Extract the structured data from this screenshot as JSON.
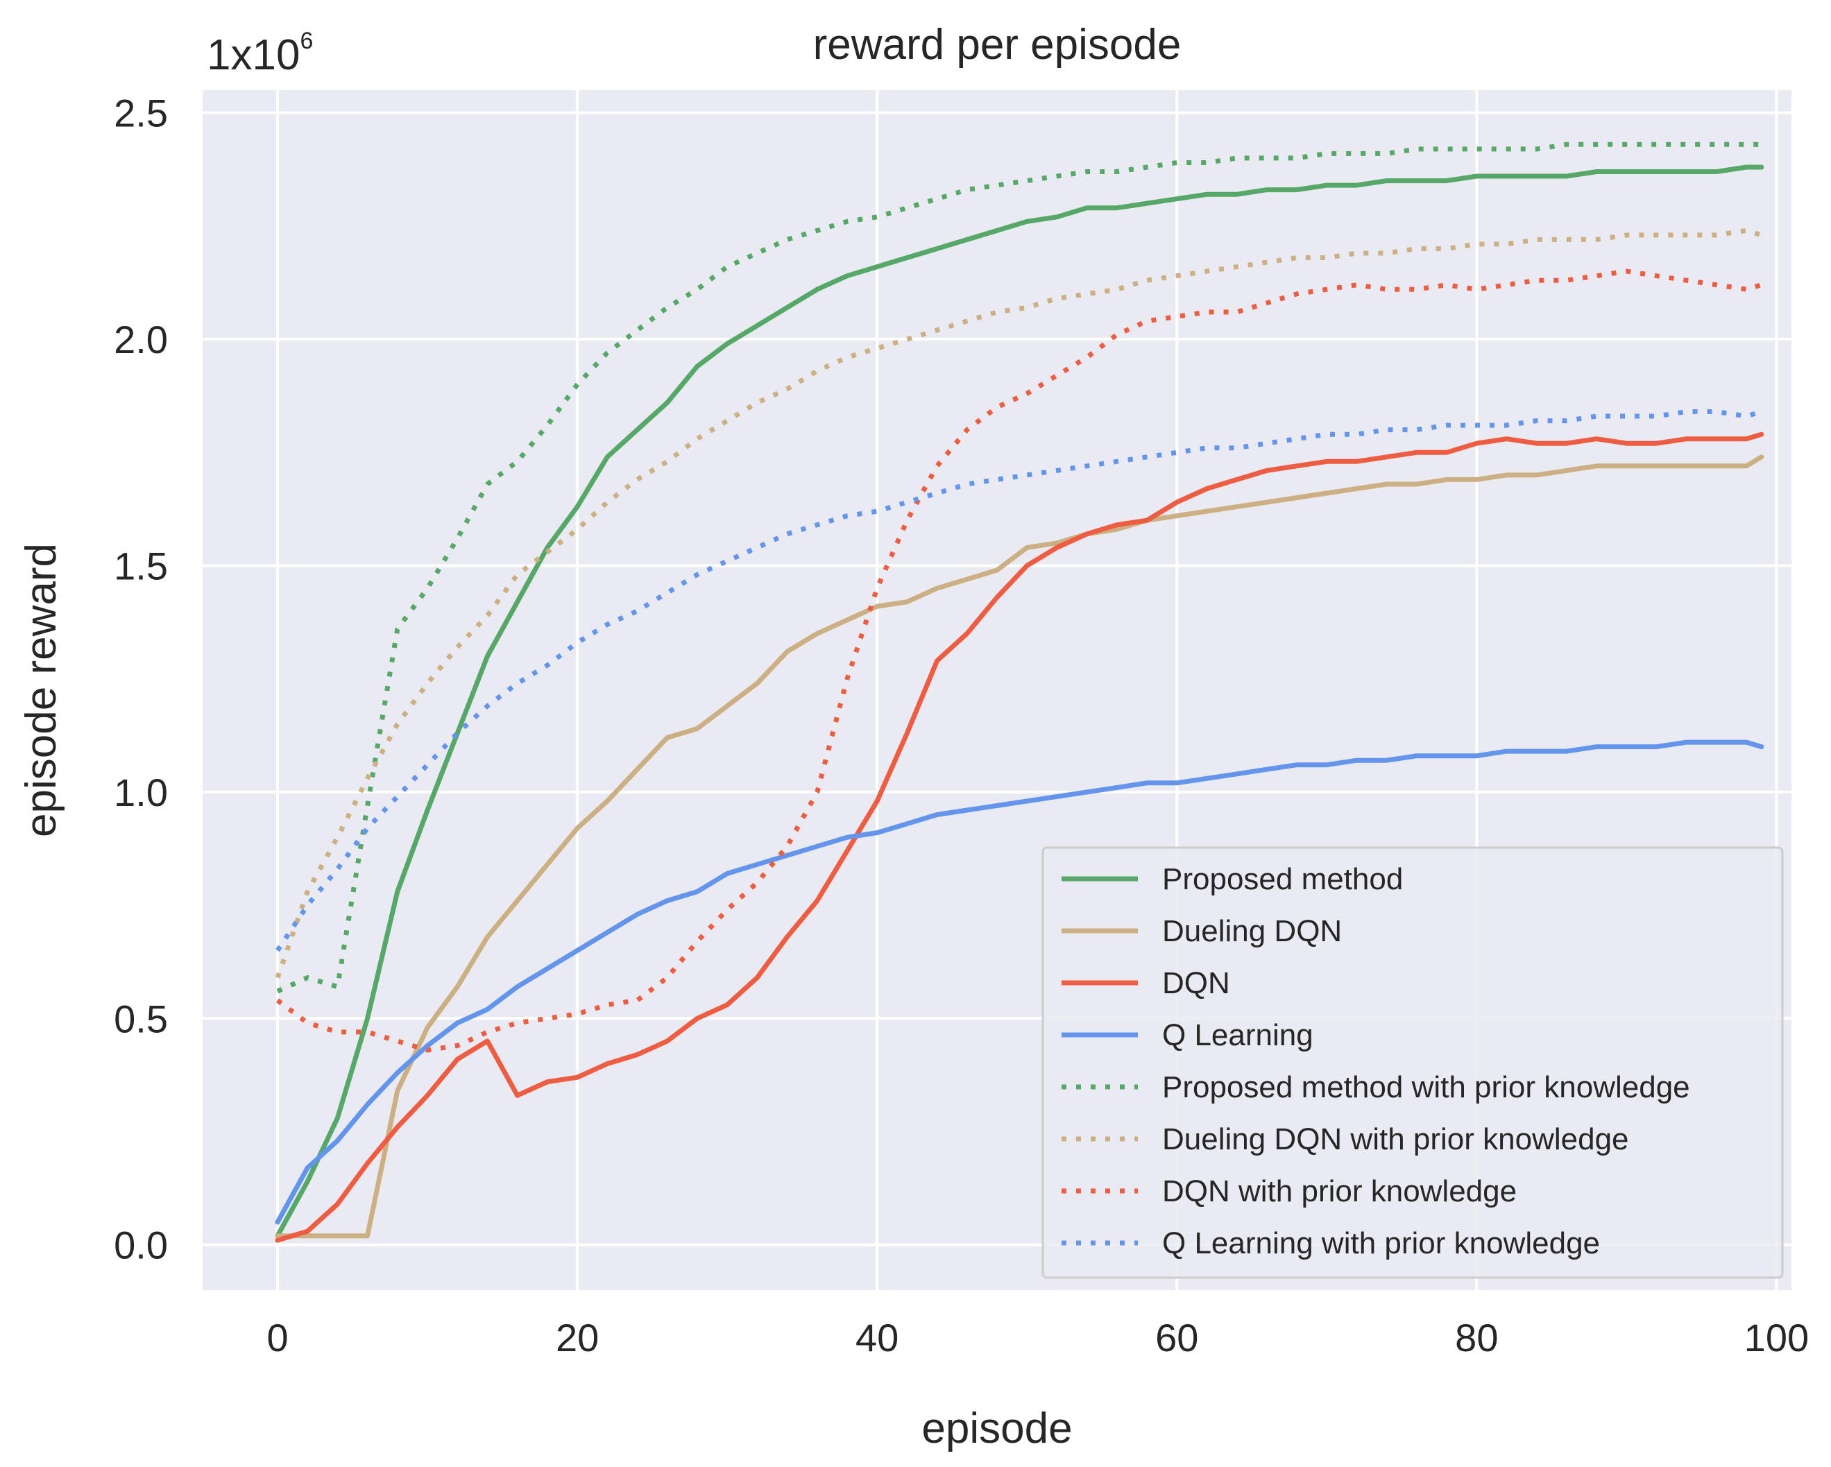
{
  "chart_data": {
    "type": "line",
    "title": "reward per episode",
    "xlabel": "episode",
    "ylabel": "episode reward",
    "scale_base": "1x10",
    "scale_exponent": "6",
    "xlim": [
      -5,
      101
    ],
    "ylim": [
      -0.1,
      2.55
    ],
    "xticks": [
      0,
      20,
      40,
      60,
      80,
      100
    ],
    "yticks": [
      0.0,
      0.5,
      1.0,
      1.5,
      2.0,
      2.5
    ],
    "ytick_labels": [
      "0.0",
      "0.5",
      "1.0",
      "1.5",
      "2.0",
      "2.5"
    ],
    "grid": true,
    "legend_position": "lower-right",
    "x": [
      0,
      2,
      4,
      6,
      8,
      10,
      12,
      14,
      16,
      18,
      20,
      22,
      24,
      26,
      28,
      30,
      32,
      34,
      36,
      38,
      40,
      42,
      44,
      46,
      48,
      50,
      52,
      54,
      56,
      58,
      60,
      62,
      64,
      66,
      68,
      70,
      72,
      74,
      76,
      78,
      80,
      82,
      84,
      86,
      88,
      90,
      92,
      94,
      96,
      98,
      99
    ],
    "series": [
      {
        "name": "Proposed method",
        "color": "#55a868",
        "style": "solid",
        "values": [
          0.02,
          0.14,
          0.28,
          0.5,
          0.78,
          0.96,
          1.13,
          1.3,
          1.42,
          1.54,
          1.63,
          1.74,
          1.8,
          1.86,
          1.94,
          1.99,
          2.03,
          2.07,
          2.11,
          2.14,
          2.16,
          2.18,
          2.2,
          2.22,
          2.24,
          2.26,
          2.27,
          2.29,
          2.29,
          2.3,
          2.31,
          2.32,
          2.32,
          2.33,
          2.33,
          2.34,
          2.34,
          2.35,
          2.35,
          2.35,
          2.36,
          2.36,
          2.36,
          2.36,
          2.37,
          2.37,
          2.37,
          2.37,
          2.37,
          2.38,
          2.38
        ]
      },
      {
        "name": "Dueling DQN",
        "color": "#ccb084",
        "style": "solid",
        "values": [
          0.02,
          0.02,
          0.02,
          0.02,
          0.34,
          0.48,
          0.57,
          0.68,
          0.76,
          0.84,
          0.92,
          0.98,
          1.05,
          1.12,
          1.14,
          1.19,
          1.24,
          1.31,
          1.35,
          1.38,
          1.41,
          1.42,
          1.45,
          1.47,
          1.49,
          1.54,
          1.55,
          1.57,
          1.58,
          1.6,
          1.61,
          1.62,
          1.63,
          1.64,
          1.65,
          1.66,
          1.67,
          1.68,
          1.68,
          1.69,
          1.69,
          1.7,
          1.7,
          1.71,
          1.72,
          1.72,
          1.72,
          1.72,
          1.72,
          1.72,
          1.74
        ]
      },
      {
        "name": "DQN",
        "color": "#ee5c42",
        "style": "solid",
        "values": [
          0.01,
          0.03,
          0.09,
          0.18,
          0.26,
          0.33,
          0.41,
          0.45,
          0.33,
          0.36,
          0.37,
          0.4,
          0.42,
          0.45,
          0.5,
          0.53,
          0.59,
          0.68,
          0.76,
          0.87,
          0.98,
          1.13,
          1.29,
          1.35,
          1.43,
          1.5,
          1.54,
          1.57,
          1.59,
          1.6,
          1.64,
          1.67,
          1.69,
          1.71,
          1.72,
          1.73,
          1.73,
          1.74,
          1.75,
          1.75,
          1.77,
          1.78,
          1.77,
          1.77,
          1.78,
          1.77,
          1.77,
          1.78,
          1.78,
          1.78,
          1.79
        ]
      },
      {
        "name": "Q Learning",
        "color": "#6495ed",
        "style": "solid",
        "values": [
          0.05,
          0.17,
          0.23,
          0.31,
          0.38,
          0.44,
          0.49,
          0.52,
          0.57,
          0.61,
          0.65,
          0.69,
          0.73,
          0.76,
          0.78,
          0.82,
          0.84,
          0.86,
          0.88,
          0.9,
          0.91,
          0.93,
          0.95,
          0.96,
          0.97,
          0.98,
          0.99,
          1.0,
          1.01,
          1.02,
          1.02,
          1.03,
          1.04,
          1.05,
          1.06,
          1.06,
          1.07,
          1.07,
          1.08,
          1.08,
          1.08,
          1.09,
          1.09,
          1.09,
          1.1,
          1.1,
          1.1,
          1.11,
          1.11,
          1.11,
          1.1
        ]
      },
      {
        "name": "Proposed method with prior knowledge",
        "color": "#55a868",
        "style": "dotted",
        "values": [
          0.56,
          0.59,
          0.57,
          0.97,
          1.36,
          1.45,
          1.56,
          1.68,
          1.73,
          1.81,
          1.9,
          1.97,
          2.02,
          2.07,
          2.11,
          2.16,
          2.19,
          2.22,
          2.24,
          2.26,
          2.27,
          2.29,
          2.31,
          2.33,
          2.34,
          2.35,
          2.36,
          2.37,
          2.37,
          2.38,
          2.39,
          2.39,
          2.4,
          2.4,
          2.4,
          2.41,
          2.41,
          2.41,
          2.42,
          2.42,
          2.42,
          2.42,
          2.42,
          2.43,
          2.43,
          2.43,
          2.43,
          2.43,
          2.43,
          2.43,
          2.43
        ]
      },
      {
        "name": "Dueling DQN with prior knowledge",
        "color": "#ccb084",
        "style": "dotted",
        "values": [
          0.59,
          0.78,
          0.9,
          1.03,
          1.15,
          1.24,
          1.32,
          1.39,
          1.48,
          1.53,
          1.58,
          1.64,
          1.69,
          1.73,
          1.78,
          1.82,
          1.86,
          1.89,
          1.93,
          1.96,
          1.98,
          2.0,
          2.02,
          2.04,
          2.06,
          2.07,
          2.09,
          2.1,
          2.11,
          2.13,
          2.14,
          2.15,
          2.16,
          2.17,
          2.18,
          2.18,
          2.19,
          2.19,
          2.2,
          2.2,
          2.21,
          2.21,
          2.22,
          2.22,
          2.22,
          2.23,
          2.23,
          2.23,
          2.23,
          2.24,
          2.23
        ]
      },
      {
        "name": "DQN with prior knowledge",
        "color": "#ee5c42",
        "style": "dotted",
        "values": [
          0.54,
          0.49,
          0.47,
          0.47,
          0.45,
          0.43,
          0.44,
          0.47,
          0.49,
          0.5,
          0.51,
          0.53,
          0.54,
          0.59,
          0.67,
          0.74,
          0.8,
          0.88,
          1.0,
          1.25,
          1.45,
          1.6,
          1.72,
          1.8,
          1.85,
          1.88,
          1.92,
          1.96,
          2.01,
          2.04,
          2.05,
          2.06,
          2.06,
          2.08,
          2.1,
          2.11,
          2.12,
          2.11,
          2.11,
          2.12,
          2.11,
          2.12,
          2.13,
          2.13,
          2.14,
          2.15,
          2.14,
          2.13,
          2.12,
          2.11,
          2.12
        ]
      },
      {
        "name": "Q Learning with prior knowledge",
        "color": "#6495ed",
        "style": "dotted",
        "values": [
          0.65,
          0.75,
          0.83,
          0.92,
          0.99,
          1.06,
          1.13,
          1.19,
          1.24,
          1.28,
          1.33,
          1.37,
          1.4,
          1.44,
          1.48,
          1.51,
          1.54,
          1.57,
          1.59,
          1.61,
          1.62,
          1.64,
          1.66,
          1.68,
          1.69,
          1.7,
          1.71,
          1.72,
          1.73,
          1.74,
          1.75,
          1.76,
          1.76,
          1.77,
          1.78,
          1.79,
          1.79,
          1.8,
          1.8,
          1.81,
          1.81,
          1.81,
          1.82,
          1.82,
          1.83,
          1.83,
          1.83,
          1.84,
          1.84,
          1.83,
          1.84
        ]
      }
    ]
  }
}
